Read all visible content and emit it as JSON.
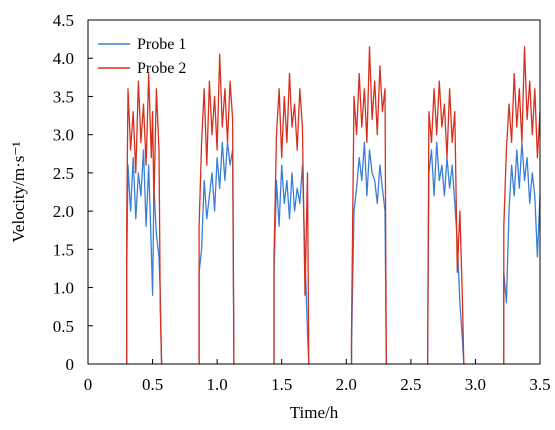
{
  "chart_data": {
    "type": "line",
    "title": "",
    "xlabel": "Time/h",
    "ylabel": "Velocity/m·s⁻¹",
    "xlim": [
      0,
      3.5
    ],
    "ylim": [
      0,
      4.5
    ],
    "x_ticks": [
      "0",
      "0.5",
      "1.0",
      "1.5",
      "2.0",
      "2.5",
      "3.0",
      "3.5"
    ],
    "y_ticks": [
      "0",
      "0.5",
      "1.0",
      "1.5",
      "2.0",
      "2.5",
      "3.0",
      "3.5",
      "4.0",
      "4.5"
    ],
    "grid": false,
    "legend": "top-left",
    "series": [
      {
        "name": "Probe 1",
        "color": "#3a7fd6",
        "segments": [
          [
            [
              0.3,
              0
            ],
            [
              0.3,
              1.2
            ],
            [
              0.31,
              2.6
            ],
            [
              0.33,
              2.0
            ],
            [
              0.35,
              2.7
            ],
            [
              0.37,
              1.9
            ],
            [
              0.39,
              2.5
            ],
            [
              0.41,
              2.2
            ],
            [
              0.43,
              2.8
            ],
            [
              0.45,
              1.8
            ],
            [
              0.47,
              2.6
            ],
            [
              0.49,
              1.5
            ],
            [
              0.5,
              0.9
            ],
            [
              0.51,
              2.3
            ],
            [
              0.53,
              1.7
            ],
            [
              0.55,
              1.4
            ],
            [
              0.56,
              0.9
            ],
            [
              0.57,
              0
            ]
          ],
          [
            [
              0.86,
              0
            ],
            [
              0.86,
              1.2
            ],
            [
              0.88,
              1.5
            ],
            [
              0.9,
              2.4
            ],
            [
              0.92,
              1.9
            ],
            [
              0.94,
              2.2
            ],
            [
              0.96,
              2.5
            ],
            [
              0.98,
              2.0
            ],
            [
              1.0,
              2.7
            ],
            [
              1.02,
              2.3
            ],
            [
              1.04,
              2.9
            ],
            [
              1.06,
              2.4
            ],
            [
              1.08,
              2.9
            ],
            [
              1.1,
              2.6
            ],
            [
              1.12,
              2.8
            ],
            [
              1.13,
              0
            ]
          ],
          [
            [
              1.44,
              0
            ],
            [
              1.44,
              1.2
            ],
            [
              1.46,
              2.4
            ],
            [
              1.48,
              1.8
            ],
            [
              1.5,
              2.6
            ],
            [
              1.52,
              2.1
            ],
            [
              1.54,
              2.4
            ],
            [
              1.56,
              1.9
            ],
            [
              1.58,
              2.5
            ],
            [
              1.6,
              2.0
            ],
            [
              1.62,
              2.3
            ],
            [
              1.64,
              2.1
            ],
            [
              1.66,
              2.6
            ],
            [
              1.68,
              1.4
            ],
            [
              1.7,
              0.4
            ],
            [
              1.71,
              0
            ]
          ],
          [
            [
              2.04,
              0
            ],
            [
              2.04,
              0.2
            ],
            [
              2.06,
              2.0
            ],
            [
              2.08,
              2.3
            ],
            [
              2.1,
              2.7
            ],
            [
              2.12,
              2.4
            ],
            [
              2.14,
              2.9
            ],
            [
              2.16,
              2.2
            ],
            [
              2.18,
              2.8
            ],
            [
              2.2,
              2.5
            ],
            [
              2.22,
              2.4
            ],
            [
              2.24,
              2.1
            ],
            [
              2.26,
              2.6
            ],
            [
              2.28,
              2.3
            ],
            [
              2.3,
              2.0
            ],
            [
              2.31,
              0
            ]
          ],
          [
            [
              2.63,
              0
            ],
            [
              2.64,
              2.5
            ],
            [
              2.66,
              2.8
            ],
            [
              2.68,
              2.2
            ],
            [
              2.7,
              2.9
            ],
            [
              2.72,
              2.4
            ],
            [
              2.74,
              2.6
            ],
            [
              2.76,
              2.2
            ],
            [
              2.78,
              2.7
            ],
            [
              2.8,
              2.3
            ],
            [
              2.82,
              2.6
            ],
            [
              2.84,
              2.1
            ],
            [
              2.86,
              1.6
            ],
            [
              2.88,
              0.8
            ],
            [
              2.9,
              0.3
            ],
            [
              2.91,
              0
            ]
          ],
          [
            [
              3.22,
              0
            ],
            [
              3.22,
              1.2
            ],
            [
              3.24,
              0.8
            ],
            [
              3.26,
              2.0
            ],
            [
              3.28,
              2.6
            ],
            [
              3.3,
              2.2
            ],
            [
              3.32,
              2.8
            ],
            [
              3.34,
              2.3
            ],
            [
              3.36,
              2.9
            ],
            [
              3.38,
              2.4
            ],
            [
              3.4,
              2.7
            ],
            [
              3.42,
              2.1
            ],
            [
              3.44,
              2.5
            ],
            [
              3.46,
              2.2
            ],
            [
              3.48,
              1.4
            ],
            [
              3.5,
              2.2
            ]
          ]
        ]
      },
      {
        "name": "Probe 2",
        "color": "#d7301f",
        "segments": [
          [
            [
              0.3,
              0
            ],
            [
              0.3,
              1.8
            ],
            [
              0.31,
              3.6
            ],
            [
              0.33,
              2.8
            ],
            [
              0.35,
              3.3
            ],
            [
              0.37,
              2.5
            ],
            [
              0.39,
              3.7
            ],
            [
              0.41,
              2.9
            ],
            [
              0.43,
              3.4
            ],
            [
              0.45,
              2.6
            ],
            [
              0.47,
              3.8
            ],
            [
              0.49,
              2.7
            ],
            [
              0.5,
              3.3
            ],
            [
              0.51,
              2.1
            ],
            [
              0.53,
              3.6
            ],
            [
              0.55,
              2.8
            ],
            [
              0.56,
              0.7
            ],
            [
              0.57,
              0
            ]
          ],
          [
            [
              0.86,
              0
            ],
            [
              0.86,
              1.8
            ],
            [
              0.88,
              2.9
            ],
            [
              0.9,
              3.6
            ],
            [
              0.92,
              2.6
            ],
            [
              0.94,
              3.7
            ],
            [
              0.96,
              3.0
            ],
            [
              0.98,
              3.5
            ],
            [
              1.0,
              2.8
            ],
            [
              1.02,
              4.05
            ],
            [
              1.04,
              3.1
            ],
            [
              1.06,
              3.6
            ],
            [
              1.08,
              2.9
            ],
            [
              1.1,
              3.7
            ],
            [
              1.12,
              3.2
            ],
            [
              1.13,
              0
            ]
          ],
          [
            [
              1.44,
              0
            ],
            [
              1.44,
              1.4
            ],
            [
              1.46,
              3.0
            ],
            [
              1.48,
              3.6
            ],
            [
              1.5,
              2.7
            ],
            [
              1.52,
              3.5
            ],
            [
              1.54,
              2.9
            ],
            [
              1.56,
              3.8
            ],
            [
              1.58,
              3.1
            ],
            [
              1.6,
              3.4
            ],
            [
              1.62,
              2.8
            ],
            [
              1.64,
              3.6
            ],
            [
              1.66,
              3.1
            ],
            [
              1.68,
              0.9
            ],
            [
              1.7,
              2.5
            ],
            [
              1.71,
              0
            ]
          ],
          [
            [
              2.04,
              0
            ],
            [
              2.04,
              0.4
            ],
            [
              2.06,
              3.5
            ],
            [
              2.08,
              3.0
            ],
            [
              2.1,
              3.8
            ],
            [
              2.12,
              3.1
            ],
            [
              2.14,
              3.6
            ],
            [
              2.16,
              2.9
            ],
            [
              2.18,
              4.15
            ],
            [
              2.2,
              3.2
            ],
            [
              2.22,
              3.7
            ],
            [
              2.24,
              3.0
            ],
            [
              2.26,
              3.9
            ],
            [
              2.28,
              3.3
            ],
            [
              2.3,
              3.6
            ],
            [
              2.31,
              0
            ]
          ],
          [
            [
              2.63,
              0
            ],
            [
              2.64,
              3.3
            ],
            [
              2.66,
              2.9
            ],
            [
              2.68,
              3.6
            ],
            [
              2.7,
              3.0
            ],
            [
              2.72,
              3.7
            ],
            [
              2.74,
              3.1
            ],
            [
              2.76,
              3.4
            ],
            [
              2.78,
              2.7
            ],
            [
              2.8,
              3.6
            ],
            [
              2.82,
              2.9
            ],
            [
              2.84,
              3.3
            ],
            [
              2.86,
              1.2
            ],
            [
              2.88,
              2.0
            ],
            [
              2.9,
              0.8
            ],
            [
              2.91,
              0
            ]
          ],
          [
            [
              3.22,
              0
            ],
            [
              3.22,
              1.8
            ],
            [
              3.24,
              2.8
            ],
            [
              3.26,
              3.4
            ],
            [
              3.28,
              2.9
            ],
            [
              3.3,
              3.8
            ],
            [
              3.32,
              3.1
            ],
            [
              3.34,
              3.6
            ],
            [
              3.36,
              2.9
            ],
            [
              3.38,
              4.15
            ],
            [
              3.4,
              3.2
            ],
            [
              3.42,
              3.7
            ],
            [
              3.44,
              3.0
            ],
            [
              3.46,
              3.6
            ],
            [
              3.48,
              2.7
            ],
            [
              3.5,
              3.3
            ]
          ]
        ]
      }
    ]
  }
}
